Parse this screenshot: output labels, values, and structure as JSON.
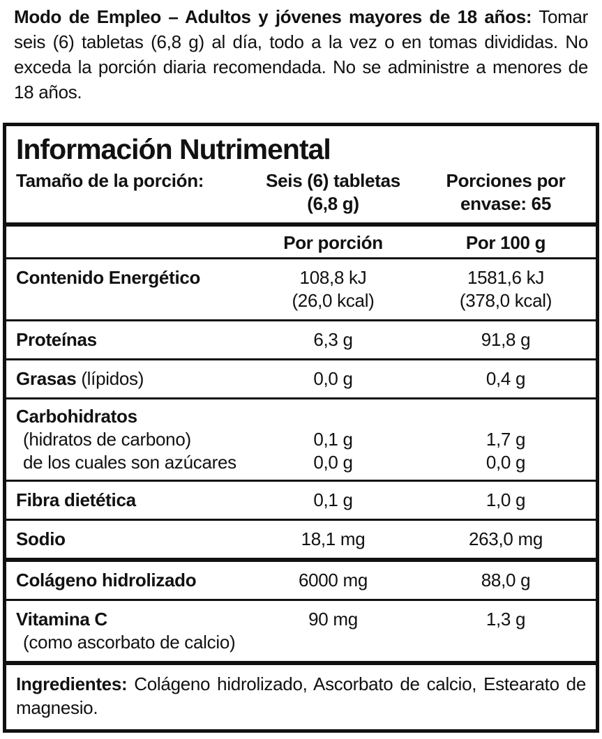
{
  "usage": {
    "lead": "Modo de Empleo – Adultos y jóvenes mayores de 18 años:",
    "body": " Tomar seis (6) tabletas (6,8 g) al día, todo a la vez o en tomas divididas. No exceda la porción diaria recomendada. No se administre a menores de 18 años."
  },
  "label": {
    "title": "Información Nutrimental",
    "serving": {
      "label": "Tamaño de la porción:",
      "size_line1": "Seis (6) tabletas",
      "size_line2": "(6,8 g)",
      "per_container_line1": "Porciones por",
      "per_container_line2": "envase: 65"
    },
    "columns": {
      "per_serving": "Por porción",
      "per_100g": "Por 100 g"
    },
    "rows": {
      "energy": {
        "name": "Contenido Energético",
        "ps1": "108,8 kJ",
        "ps2": "(26,0 kcal)",
        "p100_1": "1581,6 kJ",
        "p100_2": "(378,0 kcal)"
      },
      "protein": {
        "name": "Proteínas",
        "ps": "6,3 g",
        "p100": "91,8 g"
      },
      "fat": {
        "name": "Grasas",
        "note": "(lípidos)",
        "ps": "0,0 g",
        "p100": "0,4 g"
      },
      "carbs": {
        "name": "Carbohidratos",
        "sub1": "(hidratos de carbono)",
        "sub1_ps": "0,1 g",
        "sub1_p100": "1,7 g",
        "sub2": "de los cuales son azúcares",
        "sub2_ps": "0,0 g",
        "sub2_p100": "0,0 g"
      },
      "fiber": {
        "name": "Fibra dietética",
        "ps": "0,1 g",
        "p100": "1,0 g"
      },
      "sodium": {
        "name": "Sodio",
        "ps": "18,1 mg",
        "p100": "263,0 mg"
      },
      "collagen": {
        "name": "Colágeno hidrolizado",
        "ps": "6000 mg",
        "p100": "88,0 g"
      },
      "vitc": {
        "name": "Vitamina C",
        "note": "(como ascorbato de calcio)",
        "ps": "90 mg",
        "p100": "1,3 g"
      }
    },
    "ingredients": {
      "lead": "Ingredientes:",
      "body": " Colágeno hidrolizado, Ascorbato de calcio, Estearato de magnesio."
    }
  },
  "colors": {
    "text": "#111111",
    "background": "#ffffff",
    "border": "#111111"
  }
}
